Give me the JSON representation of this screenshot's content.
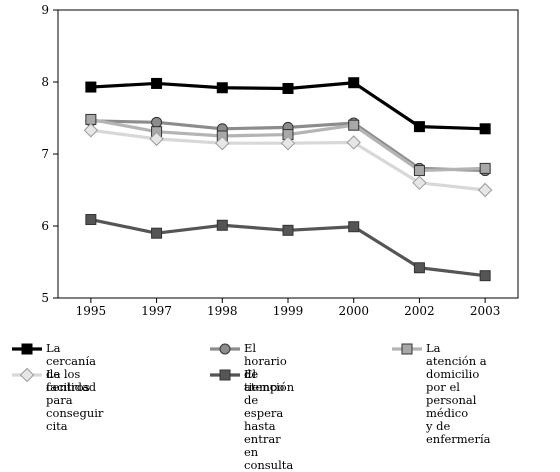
{
  "chart_data": {
    "type": "line",
    "categories": [
      "1995",
      "1997",
      "1998",
      "1999",
      "2000",
      "2002",
      "2003"
    ],
    "ylim": [
      5,
      9
    ],
    "yticks": [
      5,
      6,
      7,
      8,
      9
    ],
    "grid": false,
    "legend_placement": "bottom",
    "series": [
      {
        "name": "La cercanía de los centros",
        "key": "cercania",
        "color": "#000000",
        "marker": "square",
        "marker_fill": "#000000",
        "values": [
          7.93,
          7.98,
          7.92,
          7.91,
          7.99,
          7.38,
          7.35
        ]
      },
      {
        "name": "El horario de atención",
        "key": "horario",
        "color": "#8c8c8c",
        "marker": "circle",
        "marker_fill": "#8c8c8c",
        "values": [
          7.46,
          7.44,
          7.35,
          7.37,
          7.43,
          6.8,
          6.77
        ]
      },
      {
        "name": "La atención a domicilio\npor el personal médico\ny de enfermería",
        "key": "domicilio",
        "color": "#b4b4b4",
        "marker": "square",
        "marker_fill": "#a8a8a8",
        "values": [
          7.48,
          7.31,
          7.25,
          7.27,
          7.4,
          6.77,
          6.8
        ]
      },
      {
        "name": "La facilidad para\nconseguir cita",
        "key": "facilidad",
        "color": "#d8d8d8",
        "marker": "diamond",
        "marker_fill": "#e6e6e6",
        "values": [
          7.33,
          7.21,
          7.15,
          7.15,
          7.16,
          6.6,
          6.5
        ]
      },
      {
        "name": "El tiempo de espera\nhasta entrar en consulta",
        "key": "espera",
        "color": "#555555",
        "marker": "square",
        "marker_fill": "#555555",
        "values": [
          6.09,
          5.9,
          6.01,
          5.94,
          5.99,
          5.42,
          5.31
        ]
      }
    ]
  }
}
